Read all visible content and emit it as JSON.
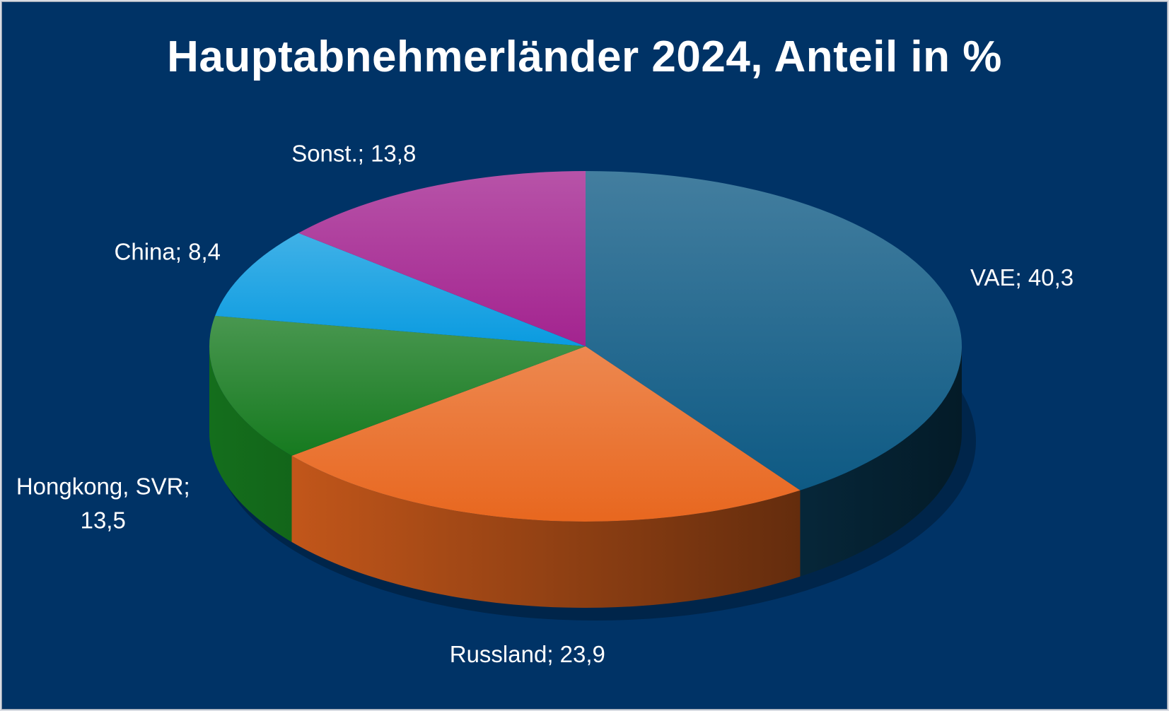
{
  "chart_data": {
    "type": "pie",
    "title": "Hauptabnehmerländer 2024, Anteil in %",
    "slices": [
      {
        "name": "VAE",
        "value": 40.3,
        "label": "VAE; 40,3",
        "color": "#0e5a84"
      },
      {
        "name": "Russland",
        "value": 23.9,
        "label": "Russland; 23,9",
        "color": "#e8671f"
      },
      {
        "name": "Hongkong, SVR",
        "value": 13.5,
        "label_lines": [
          "Hongkong, SVR;",
          "13,5"
        ],
        "color": "#167a1f"
      },
      {
        "name": "China",
        "value": 8.4,
        "label": "China; 8,4",
        "color": "#0a9be0"
      },
      {
        "name": "Sonst.",
        "value": 13.8,
        "label": "Sonst.; 13,8",
        "color": "#a3238f"
      }
    ],
    "style": "3d-pie",
    "legend": "none",
    "background": "#003366"
  }
}
